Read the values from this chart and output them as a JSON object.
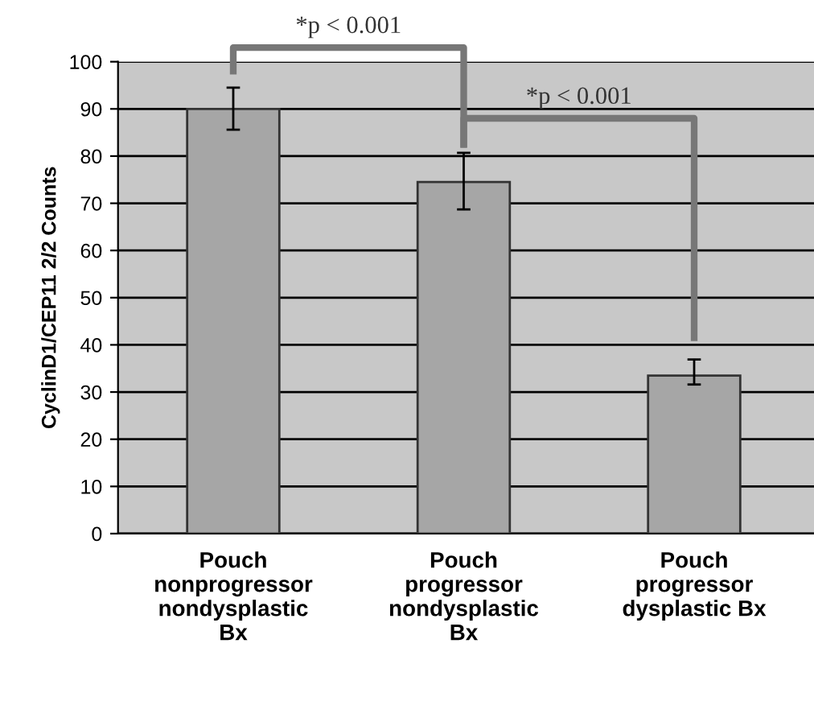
{
  "chart_data": {
    "type": "bar",
    "ylabel": "CyclinD1/CEP11 2/2 Counts",
    "categories": [
      "Pouch\nnonprogressor\nnondysplastic\nBx",
      "Pouch\nprogressor\nnondysplastic\nBx",
      "Pouch\nprogressor\ndysplastic Bx"
    ],
    "values": [
      90,
      74.5,
      33.5
    ],
    "color": "#a6a6a6",
    "errors": [
      [
        85.6,
        94.5
      ],
      [
        68.7,
        80.7
      ],
      [
        31.6,
        36.9
      ]
    ],
    "ylim": [
      0,
      100
    ],
    "yticks": [
      0,
      10,
      20,
      30,
      40,
      50,
      60,
      70,
      80,
      90,
      100
    ],
    "grid": "y",
    "annotations": [
      "*p < 0.001",
      "*p < 0.001"
    ]
  }
}
